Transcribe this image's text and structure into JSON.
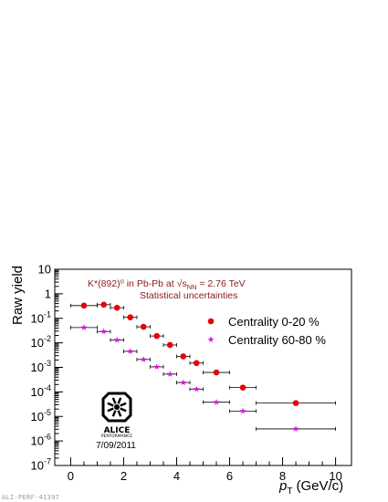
{
  "chart_data": {
    "type": "scatter",
    "title_line1": "K*(892)⁰ in Pb-Pb at √s",
    "title_sub": "NN",
    "title_line1_end": " = 2.76 TeV",
    "subtitle": "Statistical uncertainties",
    "xlabel": "p",
    "xlabel_sub": "T",
    "xlabel_units": "(GeV/c)",
    "ylabel": "Raw yield",
    "xlim": [
      -0.6,
      10.6
    ],
    "ylim_log10": [
      -7,
      1
    ],
    "y_scale": "log",
    "x_ticks": [
      0,
      2,
      4,
      6,
      8,
      10
    ],
    "x_tick_labels": [
      "0",
      "2",
      "4",
      "6",
      "8",
      "10"
    ],
    "y_tick_labels": [
      "10",
      "1",
      "10⁻¹",
      "10⁻²",
      "10⁻³",
      "10⁻⁴",
      "10⁻⁵",
      "10⁻⁶",
      "10⁻⁷"
    ],
    "legend_position": "right-middle",
    "series": [
      {
        "name": "Centrality 0-20 %",
        "color": "#e8000b",
        "marker": "circle",
        "points": [
          {
            "x": 0.5,
            "xerr": 0.5,
            "y": 0.33
          },
          {
            "x": 1.25,
            "xerr": 0.25,
            "y": 0.36
          },
          {
            "x": 1.75,
            "xerr": 0.25,
            "y": 0.27
          },
          {
            "x": 2.25,
            "xerr": 0.25,
            "y": 0.11
          },
          {
            "x": 2.75,
            "xerr": 0.25,
            "y": 0.045
          },
          {
            "x": 3.25,
            "xerr": 0.25,
            "y": 0.019
          },
          {
            "x": 3.75,
            "xerr": 0.25,
            "y": 0.0082
          },
          {
            "x": 4.25,
            "xerr": 0.25,
            "y": 0.0028
          },
          {
            "x": 4.75,
            "xerr": 0.25,
            "y": 0.0015
          },
          {
            "x": 5.5,
            "xerr": 0.5,
            "y": 0.00062
          },
          {
            "x": 6.5,
            "xerr": 0.5,
            "y": 0.00015
          },
          {
            "x": 8.5,
            "xerr": 1.5,
            "y": 3.5e-05
          }
        ]
      },
      {
        "name": "Centrality 60-80 %",
        "color": "#e010e0",
        "marker": "star",
        "points": [
          {
            "x": 0.5,
            "xerr": 0.5,
            "y": 0.042
          },
          {
            "x": 1.25,
            "xerr": 0.25,
            "y": 0.029
          },
          {
            "x": 1.75,
            "xerr": 0.25,
            "y": 0.013
          },
          {
            "x": 2.25,
            "xerr": 0.25,
            "y": 0.0045
          },
          {
            "x": 2.75,
            "xerr": 0.25,
            "y": 0.0021
          },
          {
            "x": 3.25,
            "xerr": 0.25,
            "y": 0.00105
          },
          {
            "x": 3.75,
            "xerr": 0.25,
            "y": 0.00053
          },
          {
            "x": 4.25,
            "xerr": 0.25,
            "y": 0.00024
          },
          {
            "x": 4.75,
            "xerr": 0.25,
            "y": 0.00013
          },
          {
            "x": 5.5,
            "xerr": 0.5,
            "y": 3.8e-05
          },
          {
            "x": 6.5,
            "xerr": 0.5,
            "y": 1.65e-05
          },
          {
            "x": 8.5,
            "xerr": 1.5,
            "y": 3.1e-06
          }
        ]
      }
    ]
  },
  "logo": {
    "name": "ALICE",
    "performance": "PERFORMANCE",
    "date": "7/09/2011"
  },
  "footer_id": "ALI-PERF-41397"
}
